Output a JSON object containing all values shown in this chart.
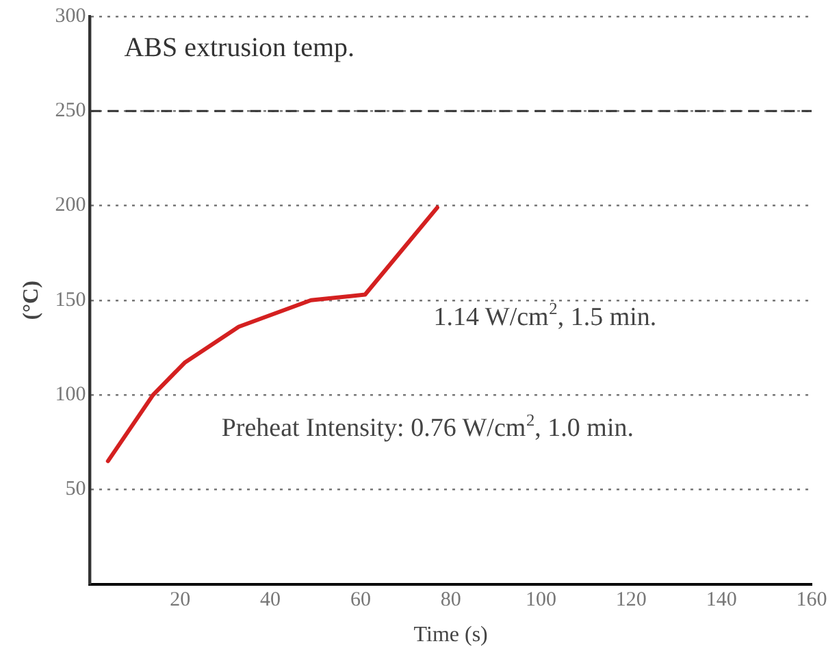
{
  "chart_data": {
    "type": "line",
    "xlabel": "Time (s)",
    "ylabel": "(°C)",
    "x": [
      4,
      14,
      21,
      33,
      49,
      61,
      77
    ],
    "series": [
      {
        "color": "#d42020",
        "values": [
          65,
          100,
          117,
          136,
          150,
          153,
          199
        ]
      }
    ],
    "xlim": [
      0,
      160
    ],
    "xticks": [
      20,
      40,
      60,
      80,
      100,
      120,
      140,
      160
    ],
    "ylim": [
      0,
      300
    ],
    "yticks": [
      50,
      100,
      150,
      200,
      250,
      300
    ],
    "grid": "y",
    "legend": false,
    "marker": "none",
    "line_style": "solid",
    "ref_lines": [
      {
        "axis": "y",
        "value": 250,
        "label": "ABS extrusion temp.",
        "color": "#333333",
        "line_style": "dashed"
      }
    ],
    "annotations": [
      {
        "text": "1.14 W/cm$^{2}$, 1.5 min.",
        "x": 61,
        "y": 153
      },
      {
        "text": "Preheat Intensity: 0.76 W/cm$^{2}$, 1.0 min.",
        "x": 14,
        "y": 100
      }
    ]
  }
}
